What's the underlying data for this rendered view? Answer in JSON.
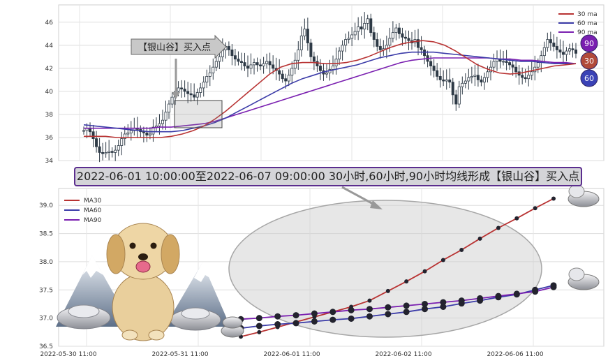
{
  "banner_text": "2022-06-01 10:00:00至2022-06-07 09:00:00 30小时,60小时,90小时均线形成【银山谷】买入点",
  "top_callout": "【银山谷】买入点",
  "colors": {
    "ma30": "#b83232",
    "ma60": "#3b3ba8",
    "ma90": "#7a1fb0"
  },
  "chart_data": [
    {
      "type": "candlestick",
      "ylim": [
        34,
        47.5
      ],
      "y_ticks": [
        "34",
        "36",
        "38",
        "40",
        "42",
        "44",
        "46"
      ],
      "legend": [
        "30 ma",
        "60 ma",
        "90 ma"
      ],
      "legend_position": "top-right",
      "badges": [
        "90",
        "30",
        "60"
      ],
      "grid": true,
      "close_series": [
        36.6,
        36.8,
        36.5,
        35.9,
        35.2,
        34.7,
        34.6,
        34.7,
        34.8,
        34.7,
        34.9,
        35.3,
        35.9,
        36.3,
        36.4,
        36.6,
        36.8,
        36.7,
        36.5,
        36.4,
        36.2,
        36.3,
        36.9,
        37.0,
        37.2,
        37.5,
        38.2,
        38.9,
        39.5,
        40.0,
        40.3,
        40.2,
        40.0,
        39.8,
        39.7,
        39.5,
        39.9,
        40.3,
        40.8,
        41.3,
        41.6,
        42.1,
        42.6,
        43.0,
        43.6,
        43.9,
        43.6,
        43.1,
        42.8,
        42.6,
        42.5,
        42.2,
        42.0,
        42.3,
        42.5,
        42.3,
        42.2,
        42.4,
        42.6,
        42.3,
        42.0,
        41.8,
        41.5,
        41.1,
        40.9,
        41.4,
        42.0,
        42.7,
        43.6,
        44.8,
        45.4,
        44.2,
        43.0,
        42.6,
        42.2,
        41.8,
        41.5,
        41.6,
        41.9,
        42.2,
        42.8,
        43.5,
        44.0,
        44.5,
        44.6,
        44.9,
        45.2,
        45.6,
        45.4,
        45.9,
        46.3,
        45.1,
        44.5,
        43.9,
        43.6,
        43.7,
        44.0,
        44.6,
        45.1,
        45.5,
        45.0,
        44.7,
        44.6,
        44.4,
        44.2,
        44.5,
        43.8,
        43.6,
        43.1,
        42.6,
        42.2,
        41.8,
        41.3,
        41.0,
        40.9,
        41.0,
        40.8,
        39.7,
        38.9,
        40.4,
        40.7,
        40.9,
        41.2,
        41.3,
        41.4,
        41.0,
        40.8,
        41.2,
        41.7,
        42.1,
        42.6,
        42.8,
        42.6,
        42.6,
        42.5,
        42.3,
        42.1,
        41.7,
        41.4,
        41.2,
        41.1,
        41.4,
        41.7,
        42.1,
        42.5,
        43.1,
        43.8,
        44.5,
        44.2,
        43.9,
        43.6,
        43.4,
        43.2,
        43.5,
        43.7,
        43.6,
        43.3
      ],
      "ma30": [
        36.1,
        36.1,
        36.1,
        36.0,
        36.0,
        36.0,
        36.0,
        36.0,
        36.1,
        36.3,
        36.6,
        37.0,
        37.6,
        38.3,
        39.1,
        39.9,
        40.7,
        41.5,
        42.1,
        42.4,
        42.5,
        42.5,
        42.4,
        42.4,
        42.5,
        42.7,
        43.0,
        43.4,
        43.8,
        44.1,
        44.3,
        44.4,
        44.3,
        44.0,
        43.5,
        42.9,
        42.3,
        41.9,
        41.6,
        41.5,
        41.6,
        41.8,
        42.0,
        42.2,
        42.3,
        42.4
      ],
      "ma60": [
        37.1,
        37.0,
        36.9,
        36.8,
        36.7,
        36.6,
        36.5,
        36.5,
        36.5,
        36.6,
        36.8,
        37.0,
        37.3,
        37.7,
        38.2,
        38.7,
        39.2,
        39.7,
        40.2,
        40.7,
        41.1,
        41.4,
        41.7,
        41.9,
        42.1,
        42.3,
        42.6,
        42.9,
        43.1,
        43.3,
        43.4,
        43.4,
        43.4,
        43.3,
        43.2,
        43.1,
        43.0,
        42.9,
        42.8,
        42.7,
        42.6,
        42.6,
        42.5,
        42.4,
        42.4,
        42.4
      ],
      "ma90": [
        36.8,
        36.8,
        36.8,
        36.8,
        36.8,
        36.8,
        36.8,
        36.9,
        36.9,
        37.0,
        37.1,
        37.2,
        37.4,
        37.7,
        38.0,
        38.3,
        38.6,
        38.9,
        39.2,
        39.5,
        39.8,
        40.1,
        40.4,
        40.7,
        41.0,
        41.3,
        41.6,
        41.9,
        42.2,
        42.5,
        42.7,
        42.8,
        42.9,
        42.9,
        42.9,
        42.9,
        42.9,
        42.9,
        42.8,
        42.8,
        42.7,
        42.7,
        42.6,
        42.5,
        42.5,
        42.4
      ]
    },
    {
      "type": "line",
      "ylim": [
        36.5,
        39.3
      ],
      "y_ticks": [
        "36.5",
        "37.0",
        "37.5",
        "38.0",
        "38.5",
        "39.0"
      ],
      "x_ticks": [
        "2022-05-30 11:00",
        "2022-05-31 11:00",
        "2022-06-01 11:00",
        "2022-06-02 11:00",
        "2022-06-06 11:00"
      ],
      "legend": [
        "MA30",
        "MA60",
        "MA90"
      ],
      "legend_position": "top-left",
      "grid": true,
      "series": [
        {
          "name": "MA30",
          "values": [
            36.67,
            36.75,
            36.84,
            36.93,
            37.02,
            37.11,
            37.2,
            37.31,
            37.48,
            37.65,
            37.83,
            38.03,
            38.21,
            38.41,
            38.6,
            38.77,
            38.95,
            39.12
          ]
        },
        {
          "name": "MA60",
          "values": [
            36.82,
            36.86,
            36.89,
            36.91,
            36.94,
            36.97,
            36.99,
            37.03,
            37.07,
            37.11,
            37.16,
            37.2,
            37.26,
            37.31,
            37.37,
            37.42,
            37.5,
            37.58
          ]
        },
        {
          "name": "MA90",
          "values": [
            36.98,
            37.0,
            37.03,
            37.05,
            37.08,
            37.11,
            37.14,
            37.16,
            37.19,
            37.22,
            37.25,
            37.28,
            37.31,
            37.35,
            37.39,
            37.43,
            37.47,
            37.55
          ]
        }
      ]
    }
  ]
}
